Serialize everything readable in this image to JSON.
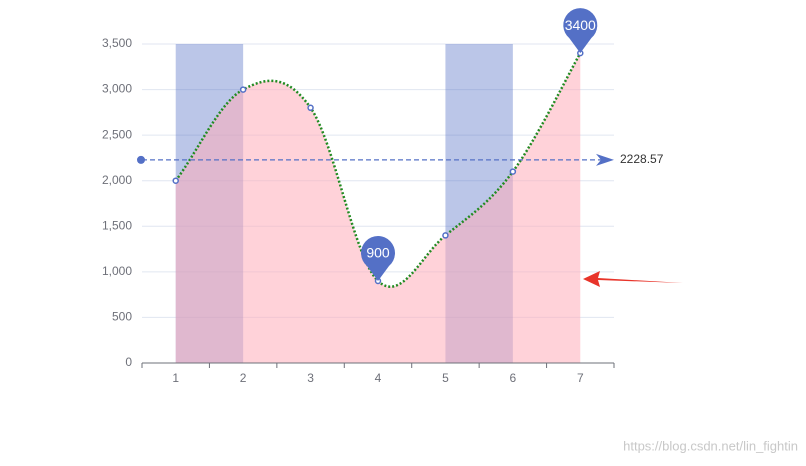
{
  "chart_data": {
    "type": "line",
    "smooth": true,
    "categories": [
      "1",
      "2",
      "3",
      "4",
      "5",
      "6",
      "7"
    ],
    "values": [
      2000,
      3000,
      2800,
      900,
      1400,
      2100,
      3400
    ],
    "color": "#5470c6",
    "line_color": "#228b22",
    "area_color": "rgba(255,173,185,0.55)",
    "ylim": [
      0,
      3500
    ],
    "yticks": [
      0,
      500,
      {
        "value": 1000,
        "label": "1,000"
      },
      {
        "value": 1500,
        "label": "1,500"
      },
      {
        "value": 2000,
        "label": "2,000"
      },
      {
        "value": 2500,
        "label": "2,500"
      },
      {
        "value": 3000,
        "label": "3,000"
      },
      {
        "value": 3500,
        "label": "3,500"
      }
    ],
    "grid": true,
    "mark_points": [
      "max",
      "min"
    ],
    "mark_line": {
      "value": 2228.57
    },
    "mark_areas": [
      [
        "1",
        "2"
      ],
      [
        "5",
        "6"
      ]
    ],
    "mark_area_color": "rgba(84,112,198,0.4)"
  },
  "watermark": "https://blog.csdn.net/lin_fightin"
}
